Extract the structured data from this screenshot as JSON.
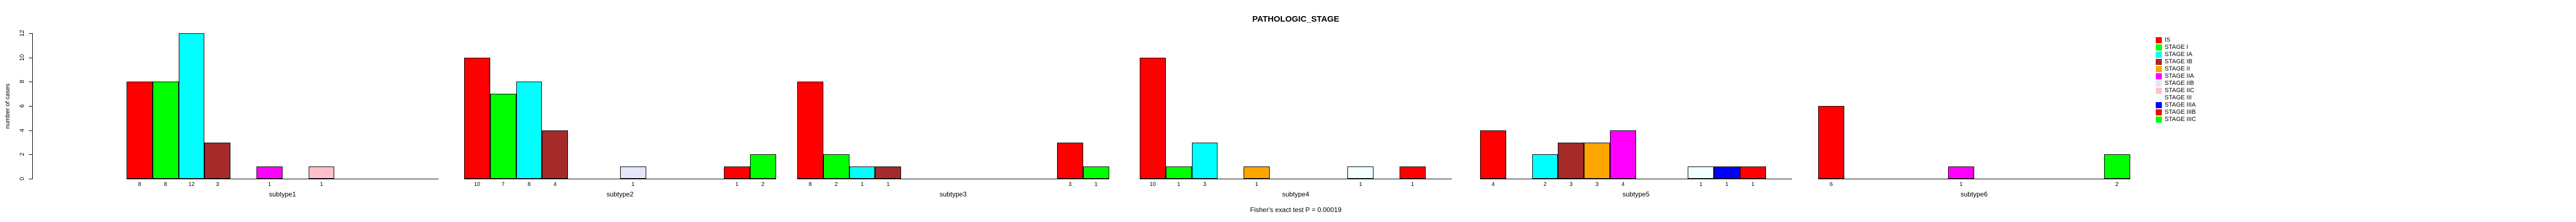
{
  "title": "PATHOLOGIC_STAGE",
  "y_axis": {
    "label": "number of cases",
    "ticks": [
      0,
      2,
      4,
      6,
      8,
      10,
      12
    ]
  },
  "caption": "Fisher's exact test P = 0.00019",
  "chart_data": {
    "type": "bar",
    "title": "PATHOLOGIC_STAGE",
    "subtitle": "",
    "xlabel": "Fisher's exact test P = 0.00019",
    "ylabel": "number of cases",
    "ylim": [
      0,
      12
    ],
    "yticks": [
      0,
      2,
      4,
      6,
      8,
      10,
      12
    ],
    "grid": false,
    "legend_position": "right",
    "bar_value_labels_shown": "only nonzero bars, printed under axis",
    "categories": [
      "subtype1",
      "subtype2",
      "subtype3",
      "subtype4",
      "subtype5",
      "subtype6"
    ],
    "series": [
      {
        "name": "IS",
        "color": "#FF0000",
        "values": [
          8,
          10,
          8,
          10,
          4,
          6
        ]
      },
      {
        "name": "STAGE I",
        "color": "#00FF00",
        "values": [
          8,
          7,
          2,
          1,
          0,
          0
        ]
      },
      {
        "name": "STAGE IA",
        "color": "#00FFFF",
        "values": [
          12,
          8,
          1,
          3,
          2,
          0
        ]
      },
      {
        "name": "STAGE IB",
        "color": "#A52A2A",
        "values": [
          3,
          4,
          1,
          0,
          3,
          0
        ]
      },
      {
        "name": "STAGE II",
        "color": "#FFA500",
        "values": [
          0,
          0,
          0,
          1,
          3,
          0
        ]
      },
      {
        "name": "STAGE IIA",
        "color": "#FF00FF",
        "values": [
          1,
          0,
          0,
          0,
          4,
          1
        ]
      },
      {
        "name": "STAGE IIB",
        "color": "#E6E6FA",
        "values": [
          0,
          1,
          0,
          0,
          0,
          0
        ]
      },
      {
        "name": "STAGE IIC",
        "color": "#FFC0CB",
        "values": [
          1,
          0,
          0,
          0,
          0,
          0
        ]
      },
      {
        "name": "STAGE III",
        "color": "#F0FFFF",
        "values": [
          0,
          0,
          0,
          1,
          1,
          0
        ]
      },
      {
        "name": "STAGE IIIA",
        "color": "#0000FF",
        "values": [
          0,
          0,
          0,
          0,
          1,
          0
        ]
      },
      {
        "name": "STAGE IIIB",
        "color": "#FF0000",
        "values": [
          0,
          1,
          3,
          1,
          1,
          0
        ]
      },
      {
        "name": "STAGE IIIC",
        "color": "#00FF00",
        "values": [
          0,
          2,
          1,
          0,
          0,
          2
        ]
      }
    ]
  },
  "colors": {
    "background": "#FFFFFF",
    "axis": "#000000",
    "text": "#000000",
    "bar_border": "#000000"
  }
}
